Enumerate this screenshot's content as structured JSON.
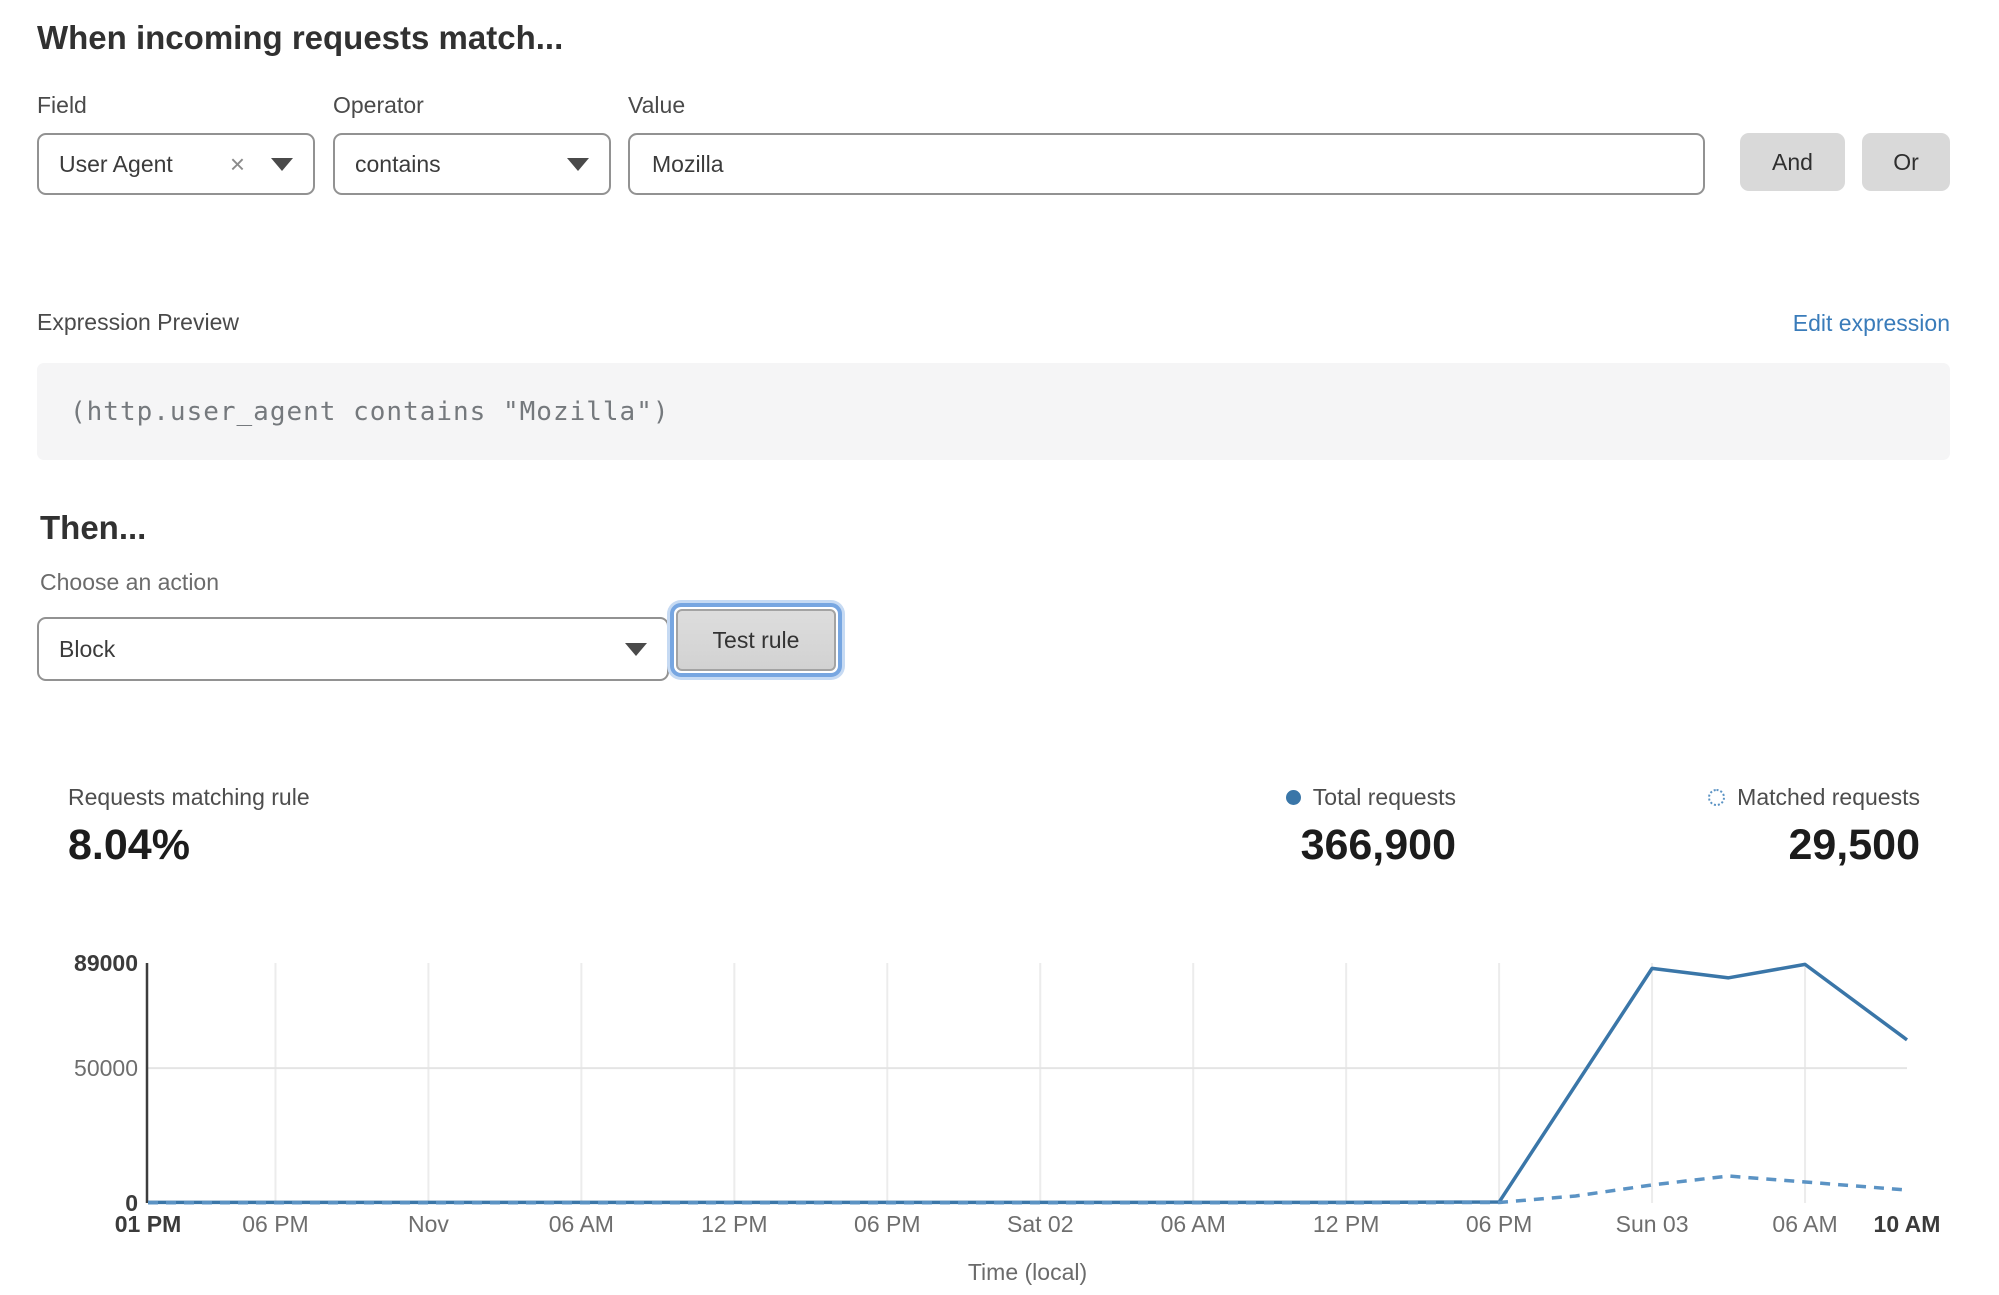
{
  "section_match": {
    "heading": "When incoming requests match...",
    "field_label": "Field",
    "operator_label": "Operator",
    "value_label": "Value",
    "field_value": "User Agent",
    "clear_icon": "×",
    "operator_value": "contains",
    "value_value": "Mozilla",
    "and_label": "And",
    "or_label": "Or"
  },
  "expression": {
    "label": "Expression Preview",
    "edit_link": "Edit expression",
    "code": "(http.user_agent contains \"Mozilla\")"
  },
  "section_then": {
    "heading": "Then...",
    "action_label": "Choose an action",
    "action_value": "Block",
    "test_button": "Test rule"
  },
  "stats": {
    "matching": {
      "label": "Requests matching rule",
      "value": "8.04%"
    },
    "total": {
      "label": "Total requests",
      "value": "366,900",
      "color": "#3a76a8"
    },
    "matched": {
      "label": "Matched requests",
      "value": "29,500",
      "color": "#5b93c4"
    }
  },
  "chart_data": {
    "type": "line",
    "title": "",
    "xlabel": "Time (local)",
    "ylabel": "",
    "x_unit": "hours since Fri 01 PM",
    "x_range_hours": [
      0,
      69
    ],
    "ylim": [
      0,
      89000
    ],
    "grid": true,
    "legend_position": "above-right",
    "yticks": [
      {
        "value": 89000,
        "label": "89000",
        "bold": true
      },
      {
        "value": 50000,
        "label": "50000",
        "bold": false
      },
      {
        "value": 0,
        "label": "0",
        "bold": true
      }
    ],
    "xticks": [
      {
        "hour": 0,
        "label": "01 PM",
        "bold": true
      },
      {
        "hour": 5,
        "label": "06 PM",
        "bold": false
      },
      {
        "hour": 11,
        "label": "Nov",
        "bold": false
      },
      {
        "hour": 17,
        "label": "06 AM",
        "bold": false
      },
      {
        "hour": 23,
        "label": "12 PM",
        "bold": false
      },
      {
        "hour": 29,
        "label": "06 PM",
        "bold": false
      },
      {
        "hour": 35,
        "label": "Sat 02",
        "bold": false
      },
      {
        "hour": 41,
        "label": "06 AM",
        "bold": false
      },
      {
        "hour": 47,
        "label": "12 PM",
        "bold": false
      },
      {
        "hour": 53,
        "label": "06 PM",
        "bold": false
      },
      {
        "hour": 59,
        "label": "Sun 03",
        "bold": false
      },
      {
        "hour": 65,
        "label": "06 AM",
        "bold": false
      },
      {
        "hour": 69,
        "label": "10 AM",
        "bold": true
      }
    ],
    "series": [
      {
        "name": "Total requests",
        "style": "solid",
        "color": "#3a76a8",
        "points": [
          [
            0,
            250
          ],
          [
            5,
            250
          ],
          [
            11,
            250
          ],
          [
            17,
            250
          ],
          [
            23,
            250
          ],
          [
            29,
            250
          ],
          [
            35,
            250
          ],
          [
            41,
            250
          ],
          [
            47,
            250
          ],
          [
            53,
            350
          ],
          [
            59,
            87000
          ],
          [
            62,
            83500
          ],
          [
            65,
            88500
          ],
          [
            69,
            60500
          ]
        ]
      },
      {
        "name": "Matched requests",
        "style": "dashed",
        "color": "#5b93c4",
        "points": [
          [
            0,
            100
          ],
          [
            5,
            100
          ],
          [
            11,
            100
          ],
          [
            17,
            100
          ],
          [
            23,
            100
          ],
          [
            29,
            100
          ],
          [
            35,
            100
          ],
          [
            41,
            100
          ],
          [
            47,
            100
          ],
          [
            53,
            200
          ],
          [
            56,
            2600
          ],
          [
            59,
            6700
          ],
          [
            62,
            10000
          ],
          [
            65,
            7800
          ],
          [
            69,
            4800
          ]
        ]
      }
    ]
  }
}
